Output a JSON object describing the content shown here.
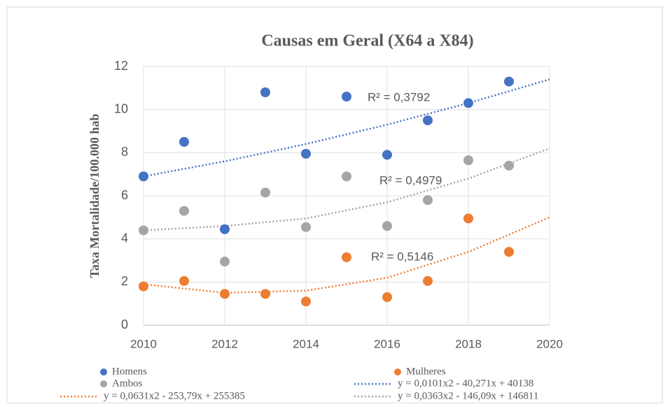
{
  "chart_data": {
    "type": "scatter",
    "title": "Causas em Geral (X64 a X84)",
    "y_label": "Taxa Mortalidade/100.000 hab",
    "xlim": [
      2010,
      2020
    ],
    "xticks": [
      2010,
      2012,
      2014,
      2016,
      2018,
      2020
    ],
    "ylim": [
      0,
      12
    ],
    "yticks": [
      0,
      2,
      4,
      6,
      8,
      10,
      12
    ],
    "grid": true,
    "series": [
      {
        "name": "Homens",
        "color": "#4472c4",
        "x": [
          2010,
          2011,
          2012,
          2013,
          2014,
          2015,
          2016,
          2017,
          2018,
          2019
        ],
        "values": [
          6.9,
          8.5,
          4.45,
          10.8,
          7.95,
          10.6,
          7.9,
          9.5,
          10.3,
          11.3
        ]
      },
      {
        "name": "Mulheres",
        "color": "#ed7d31",
        "x": [
          2010,
          2011,
          2012,
          2013,
          2014,
          2015,
          2016,
          2017,
          2018,
          2019
        ],
        "values": [
          1.8,
          2.05,
          1.45,
          1.45,
          1.1,
          3.15,
          1.3,
          2.05,
          4.95,
          3.4
        ]
      },
      {
        "name": "Ambos",
        "color": "#a5a5a5",
        "x": [
          2010,
          2011,
          2012,
          2013,
          2014,
          2015,
          2016,
          2017,
          2018,
          2019
        ],
        "values": [
          4.4,
          5.3,
          2.95,
          6.15,
          4.55,
          6.9,
          4.6,
          5.8,
          7.65,
          7.4
        ]
      },
      {
        "name": "y = 0,0101x2 - 40,271x + 40138",
        "color": "#4472c4",
        "style": "trendline",
        "x": [
          2010,
          2012,
          2014,
          2016,
          2018,
          2020
        ],
        "values": [
          6.9,
          7.6,
          8.4,
          9.3,
          10.3,
          11.4
        ]
      },
      {
        "name": "y = 0,0631x2 - 253,79x + 255385",
        "color": "#ed7d31",
        "style": "trendline",
        "x": [
          2010,
          2012,
          2014,
          2016,
          2018,
          2020
        ],
        "values": [
          1.9,
          1.5,
          1.6,
          2.2,
          3.4,
          5.0
        ]
      },
      {
        "name": "y = 0,0363x2 - 146,09x + 146811",
        "color": "#a5a5a5",
        "style": "trendline",
        "x": [
          2010,
          2012,
          2014,
          2016,
          2018,
          2020
        ],
        "values": [
          4.4,
          4.6,
          4.95,
          5.7,
          6.8,
          8.2
        ]
      }
    ],
    "annotations": [
      "R² = 0,3792",
      "R² = 0,4979",
      "R² = 0,5146"
    ]
  }
}
